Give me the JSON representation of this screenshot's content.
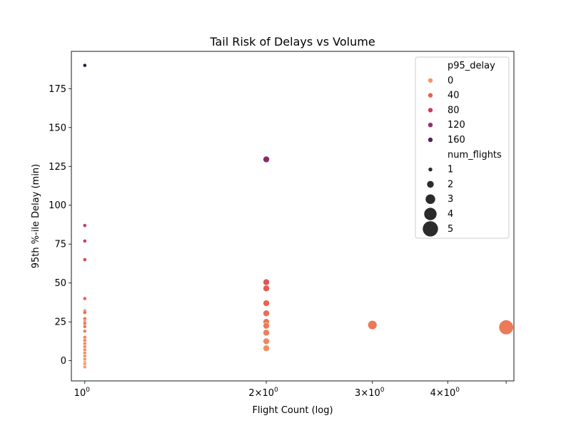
{
  "chart_data": {
    "type": "scatter",
    "title": "Tail Risk of Delays vs Volume",
    "xlabel": "Flight Count (log)",
    "ylabel": "95th %-ile Delay (min)",
    "xscale": "log",
    "xlim": [
      0.95,
      5.15
    ],
    "ylim": [
      -13,
      199
    ],
    "x_ticks": [
      {
        "value": 1,
        "base": "10",
        "exp": "0"
      },
      {
        "value": 2,
        "base": "2×10",
        "exp": "0"
      },
      {
        "value": 3,
        "base": "3×10",
        "exp": "0"
      },
      {
        "value": 4,
        "base": "4×10",
        "exp": "0"
      },
      {
        "value": 5,
        "base": "",
        "exp": ""
      }
    ],
    "y_ticks": [
      0,
      25,
      50,
      75,
      100,
      125,
      150,
      175
    ],
    "grid": false,
    "color_scale": {
      "name": "p95_delay",
      "min": -4,
      "max": 190,
      "stops": [
        "#f2a06e",
        "#e8684f",
        "#d03f5c",
        "#a0306e",
        "#6a1f6d",
        "#2f1547"
      ]
    },
    "points": [
      {
        "x": 1,
        "y": 190,
        "n": 1
      },
      {
        "x": 1,
        "y": 87,
        "n": 1
      },
      {
        "x": 1,
        "y": 77,
        "n": 1
      },
      {
        "x": 1,
        "y": 65,
        "n": 1
      },
      {
        "x": 1,
        "y": 40,
        "n": 1
      },
      {
        "x": 1,
        "y": 32,
        "n": 1
      },
      {
        "x": 1,
        "y": 31,
        "n": 1
      },
      {
        "x": 1,
        "y": 27,
        "n": 1
      },
      {
        "x": 1,
        "y": 25,
        "n": 1
      },
      {
        "x": 1,
        "y": 24,
        "n": 1
      },
      {
        "x": 1,
        "y": 22,
        "n": 1
      },
      {
        "x": 1,
        "y": 19,
        "n": 1
      },
      {
        "x": 1,
        "y": 15,
        "n": 1
      },
      {
        "x": 1,
        "y": 13,
        "n": 1
      },
      {
        "x": 1,
        "y": 11,
        "n": 1
      },
      {
        "x": 1,
        "y": 9,
        "n": 1
      },
      {
        "x": 1,
        "y": 7,
        "n": 1
      },
      {
        "x": 1,
        "y": 5,
        "n": 1
      },
      {
        "x": 1,
        "y": 3,
        "n": 1
      },
      {
        "x": 1,
        "y": 1,
        "n": 1
      },
      {
        "x": 1,
        "y": -1,
        "n": 1
      },
      {
        "x": 1,
        "y": -2,
        "n": 1
      },
      {
        "x": 1,
        "y": -4,
        "n": 1
      },
      {
        "x": 2,
        "y": 129.5,
        "n": 2
      },
      {
        "x": 2,
        "y": 50.5,
        "n": 2
      },
      {
        "x": 2,
        "y": 46.5,
        "n": 2
      },
      {
        "x": 2,
        "y": 37,
        "n": 2
      },
      {
        "x": 2,
        "y": 30.5,
        "n": 2
      },
      {
        "x": 2,
        "y": 25,
        "n": 2
      },
      {
        "x": 2,
        "y": 22.5,
        "n": 2
      },
      {
        "x": 2,
        "y": 18,
        "n": 2
      },
      {
        "x": 2,
        "y": 12.5,
        "n": 2
      },
      {
        "x": 2,
        "y": 8,
        "n": 2
      },
      {
        "x": 3,
        "y": 23,
        "n": 3
      },
      {
        "x": 5,
        "y": 21.5,
        "n": 5
      }
    ],
    "legend": {
      "placement": "top-right",
      "hue_title": "p95_delay",
      "hue_items": [
        {
          "label": "0",
          "value": 0
        },
        {
          "label": "40",
          "value": 40
        },
        {
          "label": "80",
          "value": 80
        },
        {
          "label": "120",
          "value": 120
        },
        {
          "label": "160",
          "value": 160
        }
      ],
      "size_title": "num_flights",
      "size_items": [
        {
          "label": "1",
          "value": 1
        },
        {
          "label": "2",
          "value": 2
        },
        {
          "label": "3",
          "value": 3
        },
        {
          "label": "4",
          "value": 4
        },
        {
          "label": "5",
          "value": 5
        }
      ]
    }
  }
}
